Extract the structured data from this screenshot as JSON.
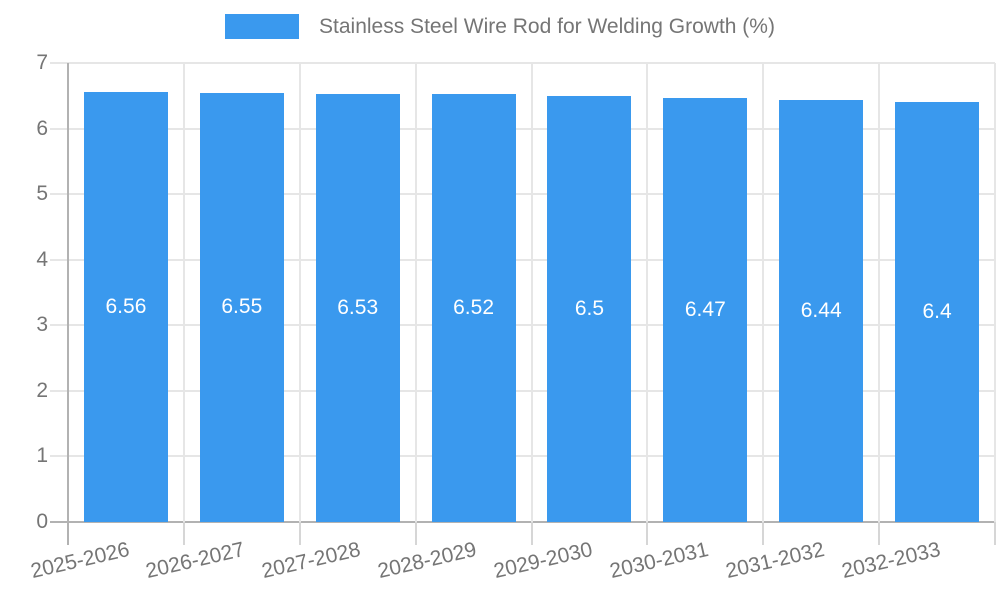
{
  "chart_data": {
    "type": "bar",
    "title": "Stainless Steel Wire Rod for Welding Growth (%)",
    "categories": [
      "2025-2026",
      "2026-2027",
      "2027-2028",
      "2028-2029",
      "2029-2030",
      "2030-2031",
      "2031-2032",
      "2032-2033"
    ],
    "values": [
      6.56,
      6.55,
      6.53,
      6.52,
      6.5,
      6.47,
      6.44,
      6.4
    ],
    "value_labels": [
      "6.56",
      "6.55",
      "6.53",
      "6.52",
      "6.5",
      "6.47",
      "6.44",
      "6.4"
    ],
    "xlabel": "",
    "ylabel": "",
    "ylim": [
      0,
      7
    ],
    "yticks": [
      0,
      1,
      2,
      3,
      4,
      5,
      6,
      7
    ],
    "grid": true,
    "legend_position": "top",
    "colors": {
      "bar": "#3a99ee",
      "bar_value_text": "#ffffff",
      "axis_text": "#757575",
      "gridline": "#e6e6e6",
      "axis_line": "#b2b2b2",
      "x_tick": "#d6d6d6"
    }
  }
}
